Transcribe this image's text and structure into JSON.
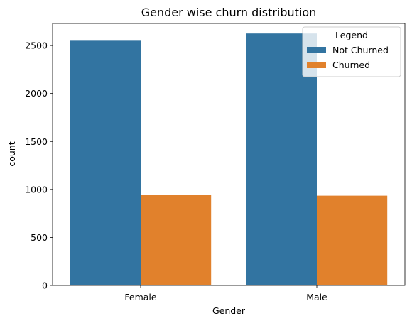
{
  "chart_data": {
    "type": "bar",
    "title": "Gender wise churn distribution",
    "xlabel": "Gender",
    "ylabel": "count",
    "categories": [
      "Female",
      "Male"
    ],
    "series": [
      {
        "name": "Not Churned",
        "values": [
          2550,
          2625
        ],
        "color": "#3274a1"
      },
      {
        "name": "Churned",
        "values": [
          940,
          935
        ],
        "color": "#e1812c"
      }
    ],
    "ylim": [
      0,
      2730
    ],
    "yticks": [
      0,
      500,
      1000,
      1500,
      2000,
      2500
    ],
    "grid": false,
    "legend": {
      "title": "Legend",
      "position": "top-right"
    }
  }
}
